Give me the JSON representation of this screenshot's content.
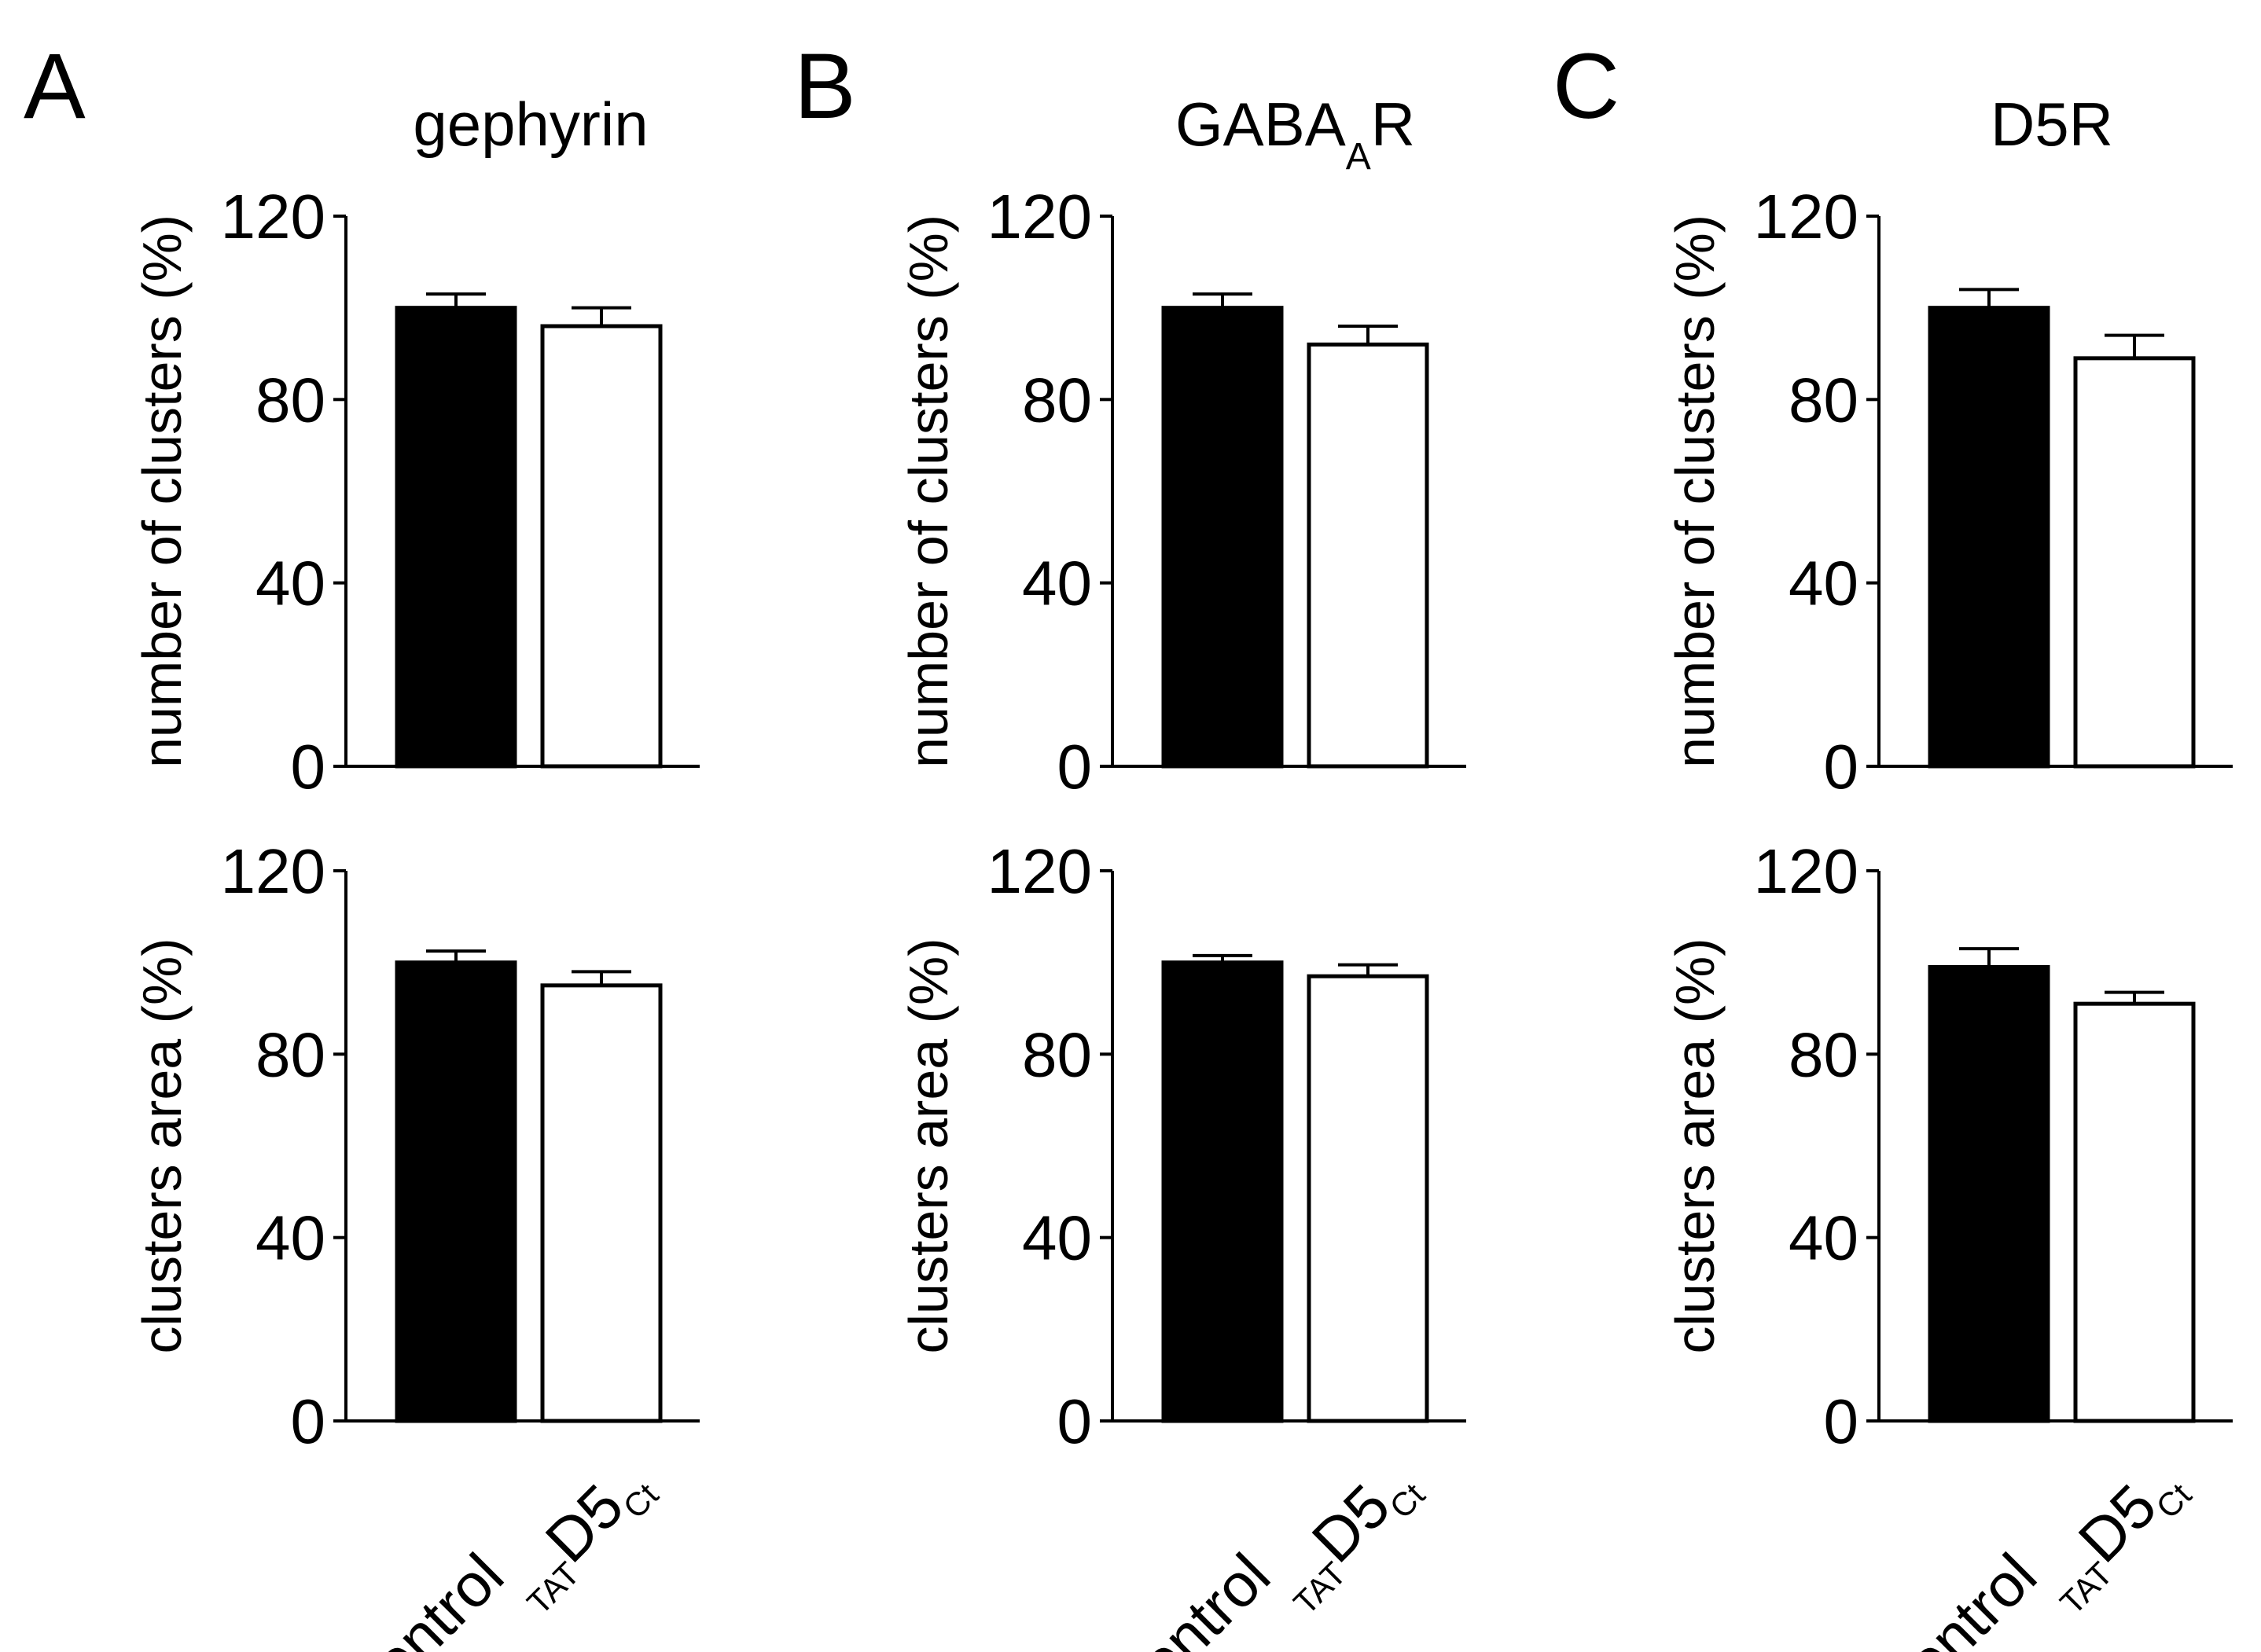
{
  "panels": [
    {
      "letter": "A",
      "title": "gephyrin",
      "title_subscript": "",
      "title_suffix": ""
    },
    {
      "letter": "B",
      "title": "GABA",
      "title_subscript": "A",
      "title_suffix": "R"
    },
    {
      "letter": "C",
      "title": "D5R",
      "title_subscript": "",
      "title_suffix": ""
    }
  ],
  "x_labels": {
    "control": "control",
    "treated_prefix": "TAT",
    "treated_main": "D5",
    "treated_suffix": "Ct"
  },
  "chart_data": [
    {
      "type": "bar",
      "panel": "A",
      "title": "gephyrin",
      "ylabel": "number of clusters (%)",
      "categories": [
        "control",
        "TATD5Ct"
      ],
      "values": [
        100,
        96
      ],
      "errors": [
        3,
        4
      ],
      "bar_colors": [
        "#000000",
        "#ffffff"
      ],
      "ylim": [
        0,
        120
      ],
      "yticks": [
        0,
        40,
        80,
        120
      ]
    },
    {
      "type": "bar",
      "panel": "A",
      "ylabel": "clusters area (%)",
      "categories": [
        "control",
        "TATD5Ct"
      ],
      "values": [
        100,
        95
      ],
      "errors": [
        2.5,
        3
      ],
      "bar_colors": [
        "#000000",
        "#ffffff"
      ],
      "ylim": [
        0,
        120
      ],
      "yticks": [
        0,
        40,
        80,
        120
      ]
    },
    {
      "type": "bar",
      "panel": "B",
      "title": "GABAAR",
      "ylabel": "number of clusters (%)",
      "categories": [
        "control",
        "TATD5Ct"
      ],
      "values": [
        100,
        92
      ],
      "errors": [
        3,
        4
      ],
      "bar_colors": [
        "#000000",
        "#ffffff"
      ],
      "ylim": [
        0,
        120
      ],
      "yticks": [
        0,
        40,
        80,
        120
      ]
    },
    {
      "type": "bar",
      "panel": "B",
      "ylabel": "clusters area (%)",
      "categories": [
        "control",
        "TATD5Ct"
      ],
      "values": [
        100,
        97
      ],
      "errors": [
        1.5,
        2.5
      ],
      "bar_colors": [
        "#000000",
        "#ffffff"
      ],
      "ylim": [
        0,
        120
      ],
      "yticks": [
        0,
        40,
        80,
        120
      ]
    },
    {
      "type": "bar",
      "panel": "C",
      "title": "D5R",
      "ylabel": "number of clusters (%)",
      "categories": [
        "control",
        "TATD5Ct"
      ],
      "values": [
        100,
        89
      ],
      "errors": [
        4,
        5
      ],
      "bar_colors": [
        "#000000",
        "#ffffff"
      ],
      "ylim": [
        0,
        120
      ],
      "yticks": [
        0,
        40,
        80,
        120
      ]
    },
    {
      "type": "bar",
      "panel": "C",
      "ylabel": "clusters area (%)",
      "categories": [
        "control",
        "TATD5Ct"
      ],
      "values": [
        99,
        91
      ],
      "errors": [
        4,
        2.5
      ],
      "bar_colors": [
        "#000000",
        "#ffffff"
      ],
      "ylim": [
        0,
        120
      ],
      "yticks": [
        0,
        40,
        80,
        120
      ]
    }
  ]
}
